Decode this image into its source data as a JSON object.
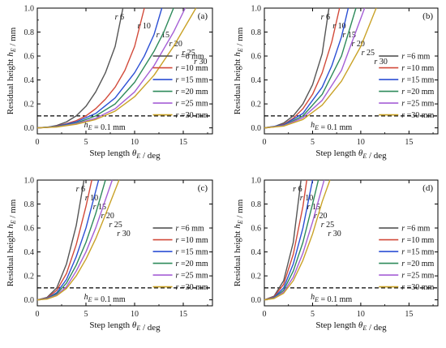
{
  "chart_data": [
    {
      "type": "line",
      "panel_label": "(a)",
      "xlabel": "Step length θ_E / deg",
      "ylabel": "Residual height h_E / mm",
      "xlim": [
        0,
        18
      ],
      "ylim": [
        -0.05,
        1.0
      ],
      "xticks": [
        0,
        5,
        10,
        15
      ],
      "yticks": [
        0.0,
        0.2,
        0.4,
        0.6,
        0.8,
        1.0
      ],
      "grid": false,
      "legend_position": "right",
      "reference_line": {
        "y": 0.1,
        "label": "h_E = 0.1 mm",
        "style": "dashed"
      },
      "series": [
        {
          "name": "r =6 mm",
          "curve_label": "r 6",
          "color": "#555555",
          "x": [
            0,
            1,
            2,
            3,
            4,
            5,
            6,
            7,
            8,
            8.8
          ],
          "y": [
            0.0,
            0.005,
            0.02,
            0.05,
            0.1,
            0.18,
            0.3,
            0.46,
            0.68,
            1.0
          ]
        },
        {
          "name": "r =10 mm",
          "curve_label": "r 10",
          "color": "#d24a3a",
          "x": [
            0,
            1,
            2,
            3,
            4,
            5,
            6,
            7,
            8,
            9,
            10,
            11
          ],
          "y": [
            0.0,
            0.004,
            0.015,
            0.035,
            0.06,
            0.1,
            0.16,
            0.24,
            0.34,
            0.48,
            0.68,
            1.0
          ]
        },
        {
          "name": "r =15 mm",
          "curve_label": "r 15",
          "color": "#2b4fd4",
          "x": [
            0,
            2,
            4,
            6,
            8,
            10,
            11,
            12,
            12.8
          ],
          "y": [
            0.0,
            0.012,
            0.05,
            0.12,
            0.25,
            0.46,
            0.6,
            0.78,
            1.0
          ]
        },
        {
          "name": "r =20 mm",
          "curve_label": "r 20",
          "color": "#2e8a5a",
          "x": [
            0,
            2,
            4,
            6,
            8,
            10,
            12,
            13,
            14
          ],
          "y": [
            0.0,
            0.01,
            0.04,
            0.1,
            0.2,
            0.38,
            0.64,
            0.8,
            1.0
          ]
        },
        {
          "name": "r =25 mm",
          "curve_label": "r 25",
          "color": "#a55fd6",
          "x": [
            0,
            2,
            4,
            6,
            8,
            10,
            12,
            14,
            15.2
          ],
          "y": [
            0.0,
            0.008,
            0.035,
            0.08,
            0.16,
            0.3,
            0.52,
            0.8,
            1.0
          ]
        },
        {
          "name": "r =30 mm",
          "curve_label": "r 30",
          "color": "#c9a227",
          "x": [
            0,
            2,
            4,
            6,
            8,
            10,
            12,
            14,
            16.3
          ],
          "y": [
            0.0,
            0.007,
            0.03,
            0.07,
            0.14,
            0.26,
            0.44,
            0.68,
            1.0
          ]
        }
      ]
    },
    {
      "type": "line",
      "panel_label": "(b)",
      "xlabel": "Step length θ_E / deg",
      "ylabel": "Residual height h_E / mm",
      "xlim": [
        0,
        18
      ],
      "ylim": [
        -0.05,
        1.0
      ],
      "xticks": [
        0,
        5,
        10,
        15
      ],
      "yticks": [
        0.0,
        0.2,
        0.4,
        0.6,
        0.8,
        1.0
      ],
      "grid": false,
      "legend_position": "right",
      "reference_line": {
        "y": 0.1,
        "label": "h_E = 0.1 mm",
        "style": "dashed"
      },
      "series": [
        {
          "name": "r =6 mm",
          "curve_label": "r 6",
          "color": "#555555",
          "x": [
            0,
            1,
            2,
            3,
            4,
            5,
            6,
            6.7
          ],
          "y": [
            0.0,
            0.01,
            0.04,
            0.1,
            0.2,
            0.36,
            0.62,
            1.0
          ]
        },
        {
          "name": "r =10 mm",
          "curve_label": "r 10",
          "color": "#d24a3a",
          "x": [
            0,
            1,
            2,
            3,
            4,
            5,
            6,
            7,
            7.8
          ],
          "y": [
            0.0,
            0.008,
            0.03,
            0.08,
            0.16,
            0.28,
            0.46,
            0.72,
            1.0
          ]
        },
        {
          "name": "r =15 mm",
          "curve_label": "r 15",
          "color": "#2b4fd4",
          "x": [
            0,
            2,
            4,
            6,
            7,
            8,
            8.7
          ],
          "y": [
            0.0,
            0.025,
            0.12,
            0.34,
            0.52,
            0.76,
            1.0
          ]
        },
        {
          "name": "r =20 mm",
          "curve_label": "r 20",
          "color": "#2e8a5a",
          "x": [
            0,
            2,
            4,
            6,
            8,
            9.5
          ],
          "y": [
            0.0,
            0.02,
            0.1,
            0.28,
            0.6,
            1.0
          ]
        },
        {
          "name": "r =25 mm",
          "curve_label": "r 25",
          "color": "#a55fd6",
          "x": [
            0,
            2,
            4,
            6,
            8,
            10.4
          ],
          "y": [
            0.0,
            0.018,
            0.085,
            0.23,
            0.48,
            1.0
          ]
        },
        {
          "name": "r =30 mm",
          "curve_label": "r 30",
          "color": "#c9a227",
          "x": [
            0,
            2,
            4,
            6,
            8,
            10,
            11.6
          ],
          "y": [
            0.0,
            0.015,
            0.07,
            0.19,
            0.39,
            0.68,
            1.0
          ]
        }
      ]
    },
    {
      "type": "line",
      "panel_label": "(c)",
      "xlabel": "Step length θ_E / deg",
      "ylabel": "Residual height h_E / mm",
      "xlim": [
        0,
        18
      ],
      "ylim": [
        -0.05,
        1.0
      ],
      "xticks": [
        0,
        5,
        10,
        15
      ],
      "yticks": [
        0.0,
        0.2,
        0.4,
        0.6,
        0.8,
        1.0
      ],
      "grid": false,
      "legend_position": "right",
      "reference_line": {
        "y": 0.1,
        "label": "h_E = 0.1 mm",
        "style": "dashed"
      },
      "series": [
        {
          "name": "r =6 mm",
          "curve_label": "r 6",
          "color": "#555555",
          "x": [
            0,
            1,
            2,
            3,
            4,
            4.8
          ],
          "y": [
            0.0,
            0.02,
            0.1,
            0.3,
            0.62,
            1.0
          ]
        },
        {
          "name": "r =10 mm",
          "curve_label": "r 10",
          "color": "#d24a3a",
          "x": [
            0,
            1,
            2,
            3,
            4,
            5,
            5.6
          ],
          "y": [
            0.0,
            0.015,
            0.08,
            0.22,
            0.46,
            0.78,
            1.0
          ]
        },
        {
          "name": "r =15 mm",
          "curve_label": "r 15",
          "color": "#2b4fd4",
          "x": [
            0,
            1,
            2,
            3,
            4,
            5,
            6.3
          ],
          "y": [
            0.0,
            0.012,
            0.06,
            0.17,
            0.36,
            0.6,
            1.0
          ]
        },
        {
          "name": "r =20 mm",
          "curve_label": "r 20",
          "color": "#2e8a5a",
          "x": [
            0,
            1,
            2,
            3,
            4,
            5,
            6,
            7.0
          ],
          "y": [
            0.0,
            0.01,
            0.05,
            0.14,
            0.29,
            0.48,
            0.72,
            1.0
          ]
        },
        {
          "name": "r =25 mm",
          "curve_label": "r 25",
          "color": "#a55fd6",
          "x": [
            0,
            1,
            2,
            3,
            4,
            5,
            6,
            7.7
          ],
          "y": [
            0.0,
            0.008,
            0.04,
            0.11,
            0.24,
            0.4,
            0.6,
            1.0
          ]
        },
        {
          "name": "r =30 mm",
          "curve_label": "r 30",
          "color": "#c9a227",
          "x": [
            0,
            1,
            2,
            3,
            4,
            5,
            6,
            7,
            8.4
          ],
          "y": [
            0.0,
            0.006,
            0.035,
            0.095,
            0.2,
            0.34,
            0.51,
            0.71,
            1.0
          ]
        }
      ]
    },
    {
      "type": "line",
      "panel_label": "(d)",
      "xlabel": "Step length θ_E / deg",
      "ylabel": "Residual height h_E / mm",
      "xlim": [
        0,
        18
      ],
      "ylim": [
        -0.05,
        1.0
      ],
      "xticks": [
        0,
        5,
        10,
        15
      ],
      "yticks": [
        0.0,
        0.2,
        0.4,
        0.6,
        0.8,
        1.0
      ],
      "grid": false,
      "legend_position": "right",
      "reference_line": {
        "y": 0.1,
        "label": "h_E = 0.1 mm",
        "style": "dashed"
      },
      "series": [
        {
          "name": "r =6 mm",
          "curve_label": "r 6",
          "color": "#555555",
          "x": [
            0,
            1,
            2,
            3,
            3.8
          ],
          "y": [
            0.0,
            0.03,
            0.16,
            0.48,
            1.0
          ]
        },
        {
          "name": "r =10 mm",
          "curve_label": "r 10",
          "color": "#d24a3a",
          "x": [
            0,
            1,
            2,
            3,
            4,
            4.4
          ],
          "y": [
            0.0,
            0.025,
            0.13,
            0.38,
            0.78,
            1.0
          ]
        },
        {
          "name": "r =15 mm",
          "curve_label": "r 15",
          "color": "#2b4fd4",
          "x": [
            0,
            1,
            2,
            3,
            4,
            5.0
          ],
          "y": [
            0.0,
            0.02,
            0.1,
            0.3,
            0.6,
            1.0
          ]
        },
        {
          "name": "r =20 mm",
          "curve_label": "r 20",
          "color": "#2e8a5a",
          "x": [
            0,
            1,
            2,
            3,
            4,
            5,
            5.6
          ],
          "y": [
            0.0,
            0.016,
            0.08,
            0.24,
            0.48,
            0.8,
            1.0
          ]
        },
        {
          "name": "r =25 mm",
          "curve_label": "r 25",
          "color": "#a55fd6",
          "x": [
            0,
            1,
            2,
            3,
            4,
            5,
            6.2
          ],
          "y": [
            0.0,
            0.013,
            0.065,
            0.19,
            0.39,
            0.65,
            1.0
          ]
        },
        {
          "name": "r =30 mm",
          "curve_label": "r 30",
          "color": "#c9a227",
          "x": [
            0,
            1,
            2,
            3,
            4,
            5,
            6,
            6.8
          ],
          "y": [
            0.0,
            0.011,
            0.055,
            0.16,
            0.33,
            0.55,
            0.82,
            1.0
          ]
        }
      ]
    }
  ]
}
